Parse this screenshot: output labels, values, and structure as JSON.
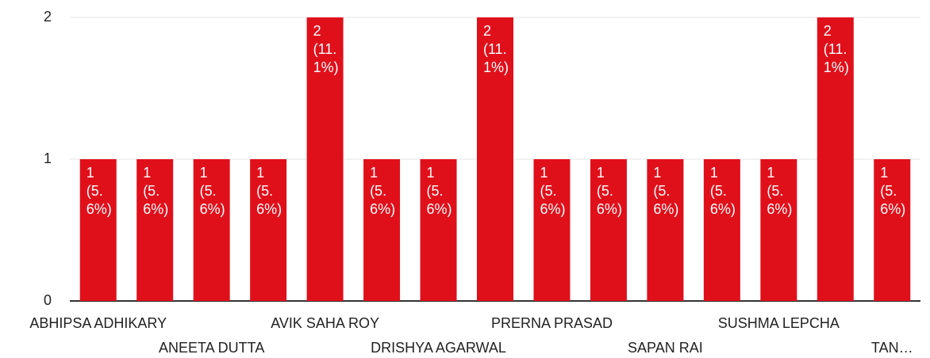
{
  "chart_data": {
    "type": "bar",
    "categories": [
      "ABHIPSA ADHIKARY",
      null,
      "ANEETA DUTTA",
      null,
      "AVIK SAHA ROY",
      null,
      "DRISHYA AGARWAL",
      null,
      "PRERNA PRASAD",
      null,
      "SAPAN RAI",
      null,
      "SUSHMA LEPCHA",
      null,
      "TAN…"
    ],
    "values": [
      1,
      1,
      1,
      1,
      2,
      1,
      1,
      2,
      1,
      1,
      1,
      1,
      1,
      2,
      1
    ],
    "value_labels": [
      "1 (5.6%)",
      "1 (5.6%)",
      "1 (5.6%)",
      "1 (5.6%)",
      "2 (11.1%)",
      "1 (5.6%)",
      "1 (5.6%)",
      "2 (11.1%)",
      "1 (5.6%)",
      "1 (5.6%)",
      "1 (5.6%)",
      "1 (5.6%)",
      "1 (5.6%)",
      "2 (11.1%)",
      "1 (5.6%)"
    ],
    "color": "#e0101b",
    "ylim": [
      0,
      2
    ],
    "yticks": [
      0,
      1,
      2
    ],
    "grid": true
  }
}
